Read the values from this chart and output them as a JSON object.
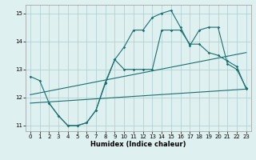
{
  "xlabel": "Humidex (Indice chaleur)",
  "ylabel": "",
  "xlim": [
    -0.5,
    23.5
  ],
  "ylim": [
    10.8,
    15.3
  ],
  "yticks": [
    11,
    12,
    13,
    14,
    15
  ],
  "xticks": [
    0,
    1,
    2,
    3,
    4,
    5,
    6,
    7,
    8,
    9,
    10,
    11,
    12,
    13,
    14,
    15,
    16,
    17,
    18,
    19,
    20,
    21,
    22,
    23
  ],
  "bg_color": "#dff0f0",
  "grid_color": "#aacccc",
  "line_color": "#1a7070",
  "line1_x": [
    0,
    1,
    2,
    3,
    4,
    5,
    6,
    7,
    8,
    9,
    10,
    11,
    12,
    13,
    14,
    15,
    16,
    17,
    18,
    19,
    20,
    21,
    22,
    23
  ],
  "line1_y": [
    12.75,
    12.6,
    11.8,
    11.35,
    11.0,
    11.0,
    11.1,
    11.55,
    12.5,
    13.35,
    13.0,
    13.0,
    13.0,
    13.0,
    14.4,
    14.4,
    14.4,
    13.9,
    13.9,
    13.6,
    13.5,
    13.3,
    13.1,
    12.3
  ],
  "line2_x": [
    2,
    3,
    4,
    5,
    6,
    7,
    8,
    9,
    10,
    11,
    12,
    13,
    14,
    15,
    16,
    17,
    18,
    19,
    20,
    21,
    22,
    23
  ],
  "line2_y": [
    11.8,
    11.35,
    11.0,
    11.0,
    11.1,
    11.55,
    12.55,
    13.35,
    13.8,
    14.4,
    14.4,
    14.85,
    15.0,
    15.1,
    14.5,
    13.85,
    14.4,
    14.5,
    14.5,
    13.2,
    13.0,
    12.35
  ],
  "line3_x": [
    0,
    23
  ],
  "line3_y": [
    11.8,
    12.3
  ],
  "line4_x": [
    0,
    23
  ],
  "line4_y": [
    12.1,
    13.6
  ]
}
